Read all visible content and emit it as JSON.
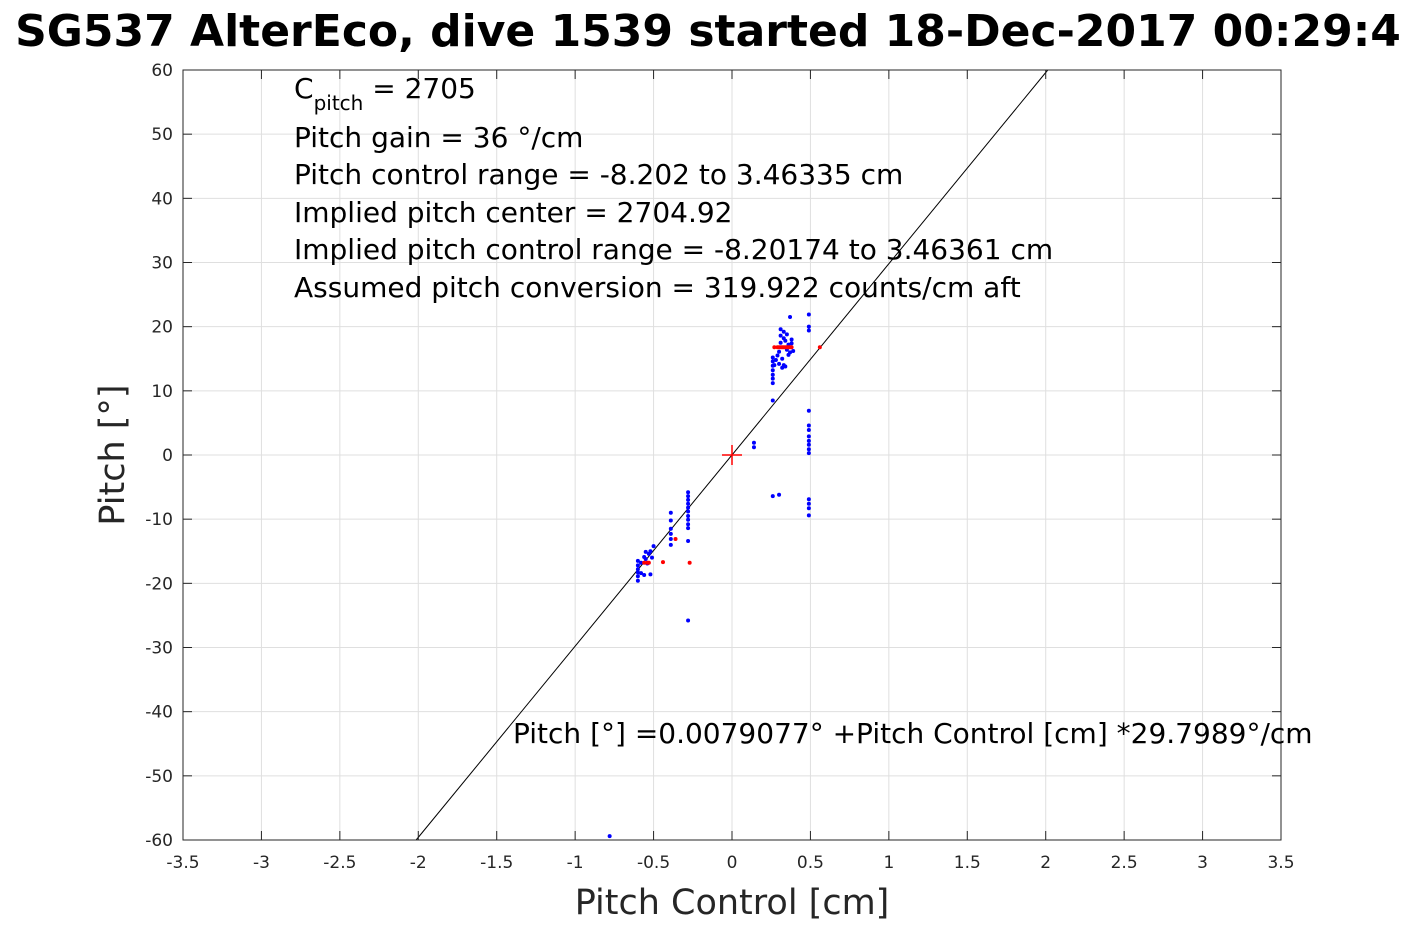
{
  "chart_data": {
    "type": "scatter",
    "title": "SG537 AlterEco, dive 1539 started 18-Dec-2017 00:29:4",
    "xlabel": "Pitch Control [cm]",
    "ylabel": "Pitch [°]",
    "xlim": [
      -3.5,
      3.5
    ],
    "ylim": [
      -60,
      60
    ],
    "grid": true,
    "x_ticks": [
      "-3.5",
      "-3",
      "-2.5",
      "-2",
      "-1.5",
      "-1",
      "-0.5",
      "0",
      "0.5",
      "1",
      "1.5",
      "2",
      "2.5",
      "3",
      "3.5"
    ],
    "y_ticks": [
      "-60",
      "-50",
      "-40",
      "-30",
      "-20",
      "-10",
      "0",
      "10",
      "20",
      "30",
      "40",
      "50",
      "60"
    ],
    "annotations": {
      "cpitch_base": "C",
      "cpitch_sub": "pitch",
      "cpitch_value": " = 2705",
      "pitch_gain": "Pitch gain = 36 °/cm",
      "control_range": "Pitch control range = -8.202 to 3.46335 cm",
      "implied_center": "Implied pitch center = 2704.92",
      "implied_range": "Implied pitch control range = -8.20174 to 3.46361 cm",
      "assumed_conversion": "Assumed pitch conversion = 319.922 counts/cm aft",
      "fit_equation": "Pitch [°] =0.0079077° +Pitch Control [cm] *29.7989°/cm"
    },
    "fit_line": {
      "intercept": 0.0079077,
      "slope": 29.7989,
      "color": "#000000"
    },
    "center_marker": {
      "x": 0,
      "y": 0,
      "color": "#ff0000"
    },
    "series": [
      {
        "color": "#0000ff",
        "points": [
          [
            -0.6,
            -16.5
          ],
          [
            -0.6,
            -17.2
          ],
          [
            -0.6,
            -17.8
          ],
          [
            -0.6,
            -18.3
          ],
          [
            -0.6,
            -18.9
          ],
          [
            -0.6,
            -19.6
          ],
          [
            -0.58,
            -16.8
          ],
          [
            -0.58,
            -18.4
          ],
          [
            -0.56,
            -15.9
          ],
          [
            -0.56,
            -18.7
          ],
          [
            -0.55,
            -15.1
          ],
          [
            -0.55,
            -16.2
          ],
          [
            -0.54,
            -16.9
          ],
          [
            -0.53,
            -15.4
          ],
          [
            -0.52,
            -15.0
          ],
          [
            -0.52,
            -18.6
          ],
          [
            -0.51,
            -16.0
          ],
          [
            -0.5,
            -14.2
          ],
          [
            -0.39,
            -9.0
          ],
          [
            -0.39,
            -10.2
          ],
          [
            -0.39,
            -11.5
          ],
          [
            -0.39,
            -12.3
          ],
          [
            -0.39,
            -13.1
          ],
          [
            -0.39,
            -14.0
          ],
          [
            -0.28,
            -5.8
          ],
          [
            -0.28,
            -6.4
          ],
          [
            -0.28,
            -7.0
          ],
          [
            -0.28,
            -7.6
          ],
          [
            -0.28,
            -8.2
          ],
          [
            -0.28,
            -8.8
          ],
          [
            -0.28,
            -9.5
          ],
          [
            -0.28,
            -10.1
          ],
          [
            -0.28,
            -10.8
          ],
          [
            -0.28,
            -11.4
          ],
          [
            -0.28,
            -13.4
          ],
          [
            -0.28,
            -25.8
          ],
          [
            -0.78,
            -59.4
          ],
          [
            0.14,
            1.2
          ],
          [
            0.14,
            1.9
          ],
          [
            0.26,
            8.5
          ],
          [
            0.26,
            11.2
          ],
          [
            0.26,
            11.9
          ],
          [
            0.26,
            12.5
          ],
          [
            0.26,
            13.2
          ],
          [
            0.26,
            13.9
          ],
          [
            0.26,
            14.6
          ],
          [
            0.26,
            15.2
          ],
          [
            0.27,
            14.0
          ],
          [
            0.28,
            14.8
          ],
          [
            0.29,
            15.5
          ],
          [
            0.3,
            14.2
          ],
          [
            0.3,
            16.1
          ],
          [
            0.31,
            17.5
          ],
          [
            0.31,
            18.6
          ],
          [
            0.31,
            19.6
          ],
          [
            0.32,
            13.6
          ],
          [
            0.32,
            15.0
          ],
          [
            0.33,
            14.0
          ],
          [
            0.33,
            18.2
          ],
          [
            0.33,
            19.2
          ],
          [
            0.34,
            17.8
          ],
          [
            0.34,
            13.8
          ],
          [
            0.35,
            16.4
          ],
          [
            0.35,
            18.8
          ],
          [
            0.36,
            17.2
          ],
          [
            0.36,
            15.6
          ],
          [
            0.37,
            16.0
          ],
          [
            0.37,
            21.5
          ],
          [
            0.38,
            18.0
          ],
          [
            0.38,
            17.4
          ],
          [
            0.39,
            16.2
          ],
          [
            0.26,
            -6.4
          ],
          [
            0.3,
            -6.2
          ],
          [
            0.49,
            21.9
          ],
          [
            0.49,
            20.0
          ],
          [
            0.49,
            19.4
          ],
          [
            0.49,
            6.9
          ],
          [
            0.49,
            4.6
          ],
          [
            0.49,
            3.9
          ],
          [
            0.49,
            2.9
          ],
          [
            0.49,
            2.2
          ],
          [
            0.49,
            1.6
          ],
          [
            0.49,
            0.9
          ],
          [
            0.49,
            0.3
          ],
          [
            0.49,
            -6.9
          ],
          [
            0.49,
            -7.6
          ],
          [
            0.49,
            -8.3
          ],
          [
            0.49,
            -9.4
          ]
        ]
      },
      {
        "color": "#ff0000",
        "points": [
          [
            -0.56,
            -16.8
          ],
          [
            -0.54,
            -16.8
          ],
          [
            -0.53,
            -16.8
          ],
          [
            -0.44,
            -16.7
          ],
          [
            -0.36,
            -13.1
          ],
          [
            -0.27,
            -16.8
          ],
          [
            0.27,
            16.8
          ],
          [
            0.29,
            16.8
          ],
          [
            0.3,
            16.8
          ],
          [
            0.31,
            16.8
          ],
          [
            0.32,
            16.8
          ],
          [
            0.33,
            16.8
          ],
          [
            0.34,
            16.8
          ],
          [
            0.35,
            16.8
          ],
          [
            0.36,
            16.8
          ],
          [
            0.37,
            16.8
          ],
          [
            0.38,
            16.8
          ],
          [
            0.56,
            16.8
          ]
        ]
      }
    ]
  }
}
